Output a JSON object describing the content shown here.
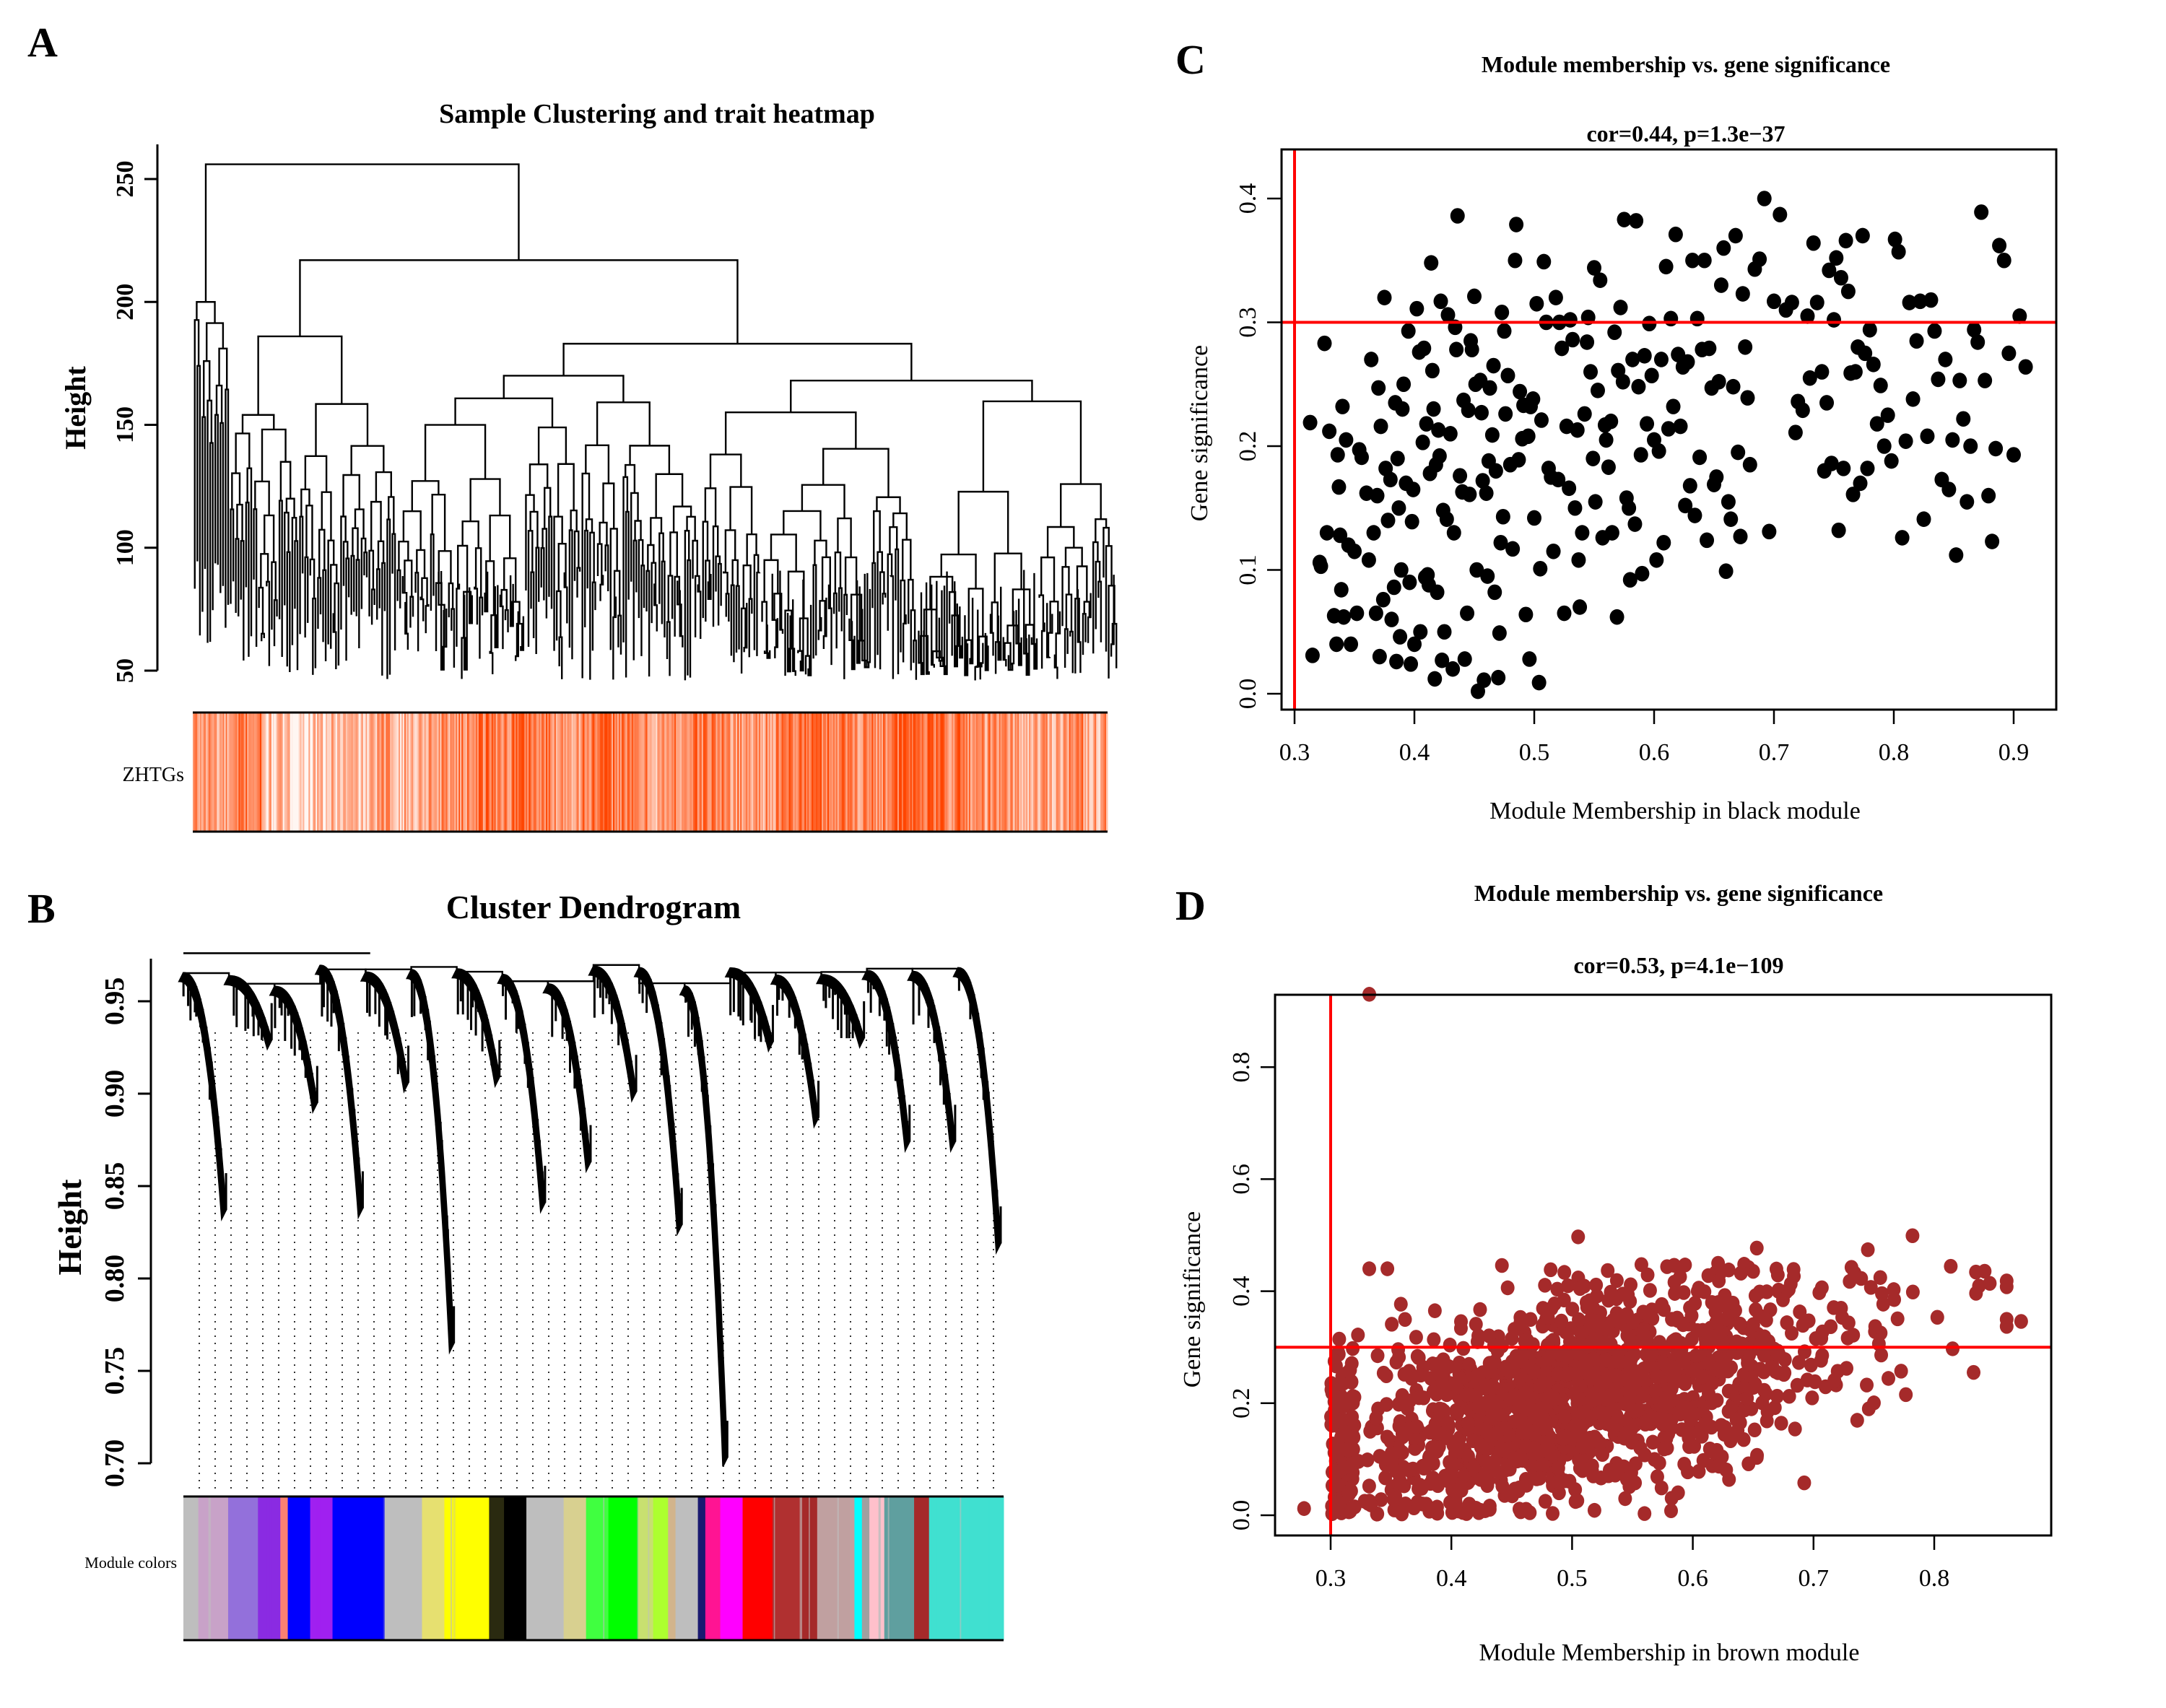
{
  "figure": {
    "panels": {
      "A": {
        "letter": "A"
      },
      "B": {
        "letter": "B"
      },
      "C": {
        "letter": "C"
      },
      "D": {
        "letter": "D"
      }
    }
  },
  "chart_data": [
    {
      "id": "A",
      "type": "dendrogram_heatmap",
      "title": "Sample Clustering and trait heatmap",
      "ylabel": "Height",
      "xlabel": "",
      "ylim": [
        50,
        260
      ],
      "yticks": [
        50,
        100,
        150,
        200,
        250
      ],
      "yticks_labels": [
        "50",
        "100",
        "150",
        "200",
        "250"
      ],
      "top_merge_heights": [
        256,
        217,
        186,
        183,
        177,
        170,
        167,
        166,
        161,
        155
      ],
      "leaf_height_range": [
        46,
        200
      ],
      "trait_row_label": "ZHTGs",
      "trait_colors": {
        "low": "#ffffff",
        "high": "#ff4500"
      },
      "trait_intensity_profile": [
        0.55,
        0.45,
        0.7,
        0.3,
        0.2,
        0.25,
        0.35,
        0.3,
        0.5,
        0.4,
        0.55,
        0.6,
        0.75,
        0.7,
        0.8,
        0.65,
        0.6,
        0.7,
        0.75,
        0.6,
        0.5,
        0.65,
        0.7,
        0.6,
        0.55,
        0.6,
        0.75,
        0.8,
        0.7,
        0.65,
        0.75,
        0.85,
        0.8,
        0.7,
        0.6,
        0.55,
        0.45,
        0.5,
        0.6,
        0.5
      ]
    },
    {
      "id": "B",
      "type": "dendrogram_colorbar",
      "title": "Cluster Dendrogram",
      "ylabel": "Height",
      "xlabel": "",
      "ylim": [
        0.695,
        0.978
      ],
      "yticks": [
        0.7,
        0.75,
        0.8,
        0.85,
        0.9,
        0.95
      ],
      "yticks_labels": [
        "0.70",
        "0.75",
        "0.80",
        "0.85",
        "0.90",
        "0.95"
      ],
      "branch_min_heights": [
        0.837,
        0.929,
        0.895,
        0.838,
        0.906,
        0.765,
        0.909,
        0.841,
        0.863,
        0.901,
        0.829,
        0.703,
        0.928,
        0.887,
        0.93,
        0.874,
        0.874,
        0.819
      ],
      "colorbar_label": "Module colors",
      "module_segments": [
        {
          "color": "#bebebe",
          "w": 2
        },
        {
          "color": "#c8a2c8",
          "w": 4
        },
        {
          "color": "#9370db",
          "w": 4
        },
        {
          "color": "#8a2be2",
          "w": 3
        },
        {
          "color": "#fa8072",
          "w": 1
        },
        {
          "color": "#0000ff",
          "w": 3
        },
        {
          "color": "#a020f0",
          "w": 3
        },
        {
          "color": "#0000ff",
          "w": 7
        },
        {
          "color": "#bebebe",
          "w": 5
        },
        {
          "color": "#e6e070",
          "w": 3
        },
        {
          "color": "#ffff00",
          "w": 6
        },
        {
          "color": "#2a2a10",
          "w": 2
        },
        {
          "color": "#000000",
          "w": 3
        },
        {
          "color": "#bebebe",
          "w": 5
        },
        {
          "color": "#d8d090",
          "w": 3
        },
        {
          "color": "#40ff40",
          "w": 3
        },
        {
          "color": "#00ff00",
          "w": 4
        },
        {
          "color": "#c8e070",
          "w": 2
        },
        {
          "color": "#adff2f",
          "w": 2
        },
        {
          "color": "#d2b48c",
          "w": 1
        },
        {
          "color": "#bebebe",
          "w": 3
        },
        {
          "color": "#191970",
          "w": 1
        },
        {
          "color": "#ff1493",
          "w": 2
        },
        {
          "color": "#ff00ff",
          "w": 3
        },
        {
          "color": "#ff0000",
          "w": 4
        },
        {
          "color": "#b03030",
          "w": 4
        },
        {
          "color": "#a52a2a",
          "w": 2
        },
        {
          "color": "#c0a0a0",
          "w": 5
        },
        {
          "color": "#00ffff",
          "w": 1
        },
        {
          "color": "#a0a0a0",
          "w": 1
        },
        {
          "color": "#ffc0cb",
          "w": 2
        },
        {
          "color": "#5f9f9f",
          "w": 4
        },
        {
          "color": "#a52a2a",
          "w": 2
        },
        {
          "color": "#40e0d0",
          "w": 10
        }
      ]
    },
    {
      "id": "C",
      "type": "scatter",
      "title": "Module membership vs. gene significance",
      "subtitle": "cor=0.44, p=1.3e−37",
      "xlabel": "Module Membership in black module",
      "ylabel": "Gene significance",
      "xlim": [
        0.3,
        0.91
      ],
      "ylim": [
        0.0,
        0.42
      ],
      "xticks": [
        0.3,
        0.4,
        0.5,
        0.6,
        0.7,
        0.8,
        0.9
      ],
      "xticks_labels": [
        "0.3",
        "0.4",
        "0.5",
        "0.6",
        "0.7",
        "0.8",
        "0.9"
      ],
      "yticks": [
        0.0,
        0.1,
        0.2,
        0.3,
        0.4
      ],
      "yticks_labels": [
        "0.0",
        "0.1",
        "0.2",
        "0.3",
        "0.4"
      ],
      "point_color": "#000000",
      "reference_lines": {
        "vertical_x": 0.3,
        "horizontal_y": 0.3,
        "color": "#ff0000"
      },
      "points_x": [
        0.313,
        0.315,
        0.321,
        0.322,
        0.325,
        0.327,
        0.329,
        0.333,
        0.335,
        0.336,
        0.337,
        0.338,
        0.339,
        0.34,
        0.341,
        0.343,
        0.345,
        0.347,
        0.35,
        0.352,
        0.354,
        0.356,
        0.36,
        0.362,
        0.364,
        0.366,
        0.368,
        0.369,
        0.37,
        0.371,
        0.372,
        0.374,
        0.375,
        0.376,
        0.378,
        0.38,
        0.381,
        0.383,
        0.384,
        0.385,
        0.386,
        0.387,
        0.388,
        0.389,
        0.39,
        0.391,
        0.393,
        0.395,
        0.396,
        0.397,
        0.398,
        0.399,
        0.4,
        0.402,
        0.404,
        0.405,
        0.407,
        0.408,
        0.409,
        0.41,
        0.411,
        0.412,
        0.413,
        0.414,
        0.415,
        0.416,
        0.417,
        0.418,
        0.419,
        0.42,
        0.421,
        0.422,
        0.423,
        0.424,
        0.425,
        0.427,
        0.428,
        0.43,
        0.432,
        0.433,
        0.434,
        0.435,
        0.436,
        0.438,
        0.44,
        0.441,
        0.442,
        0.444,
        0.445,
        0.446,
        0.447,
        0.448,
        0.45,
        0.451,
        0.452,
        0.453,
        0.455,
        0.456,
        0.457,
        0.458,
        0.46,
        0.461,
        0.462,
        0.463,
        0.465,
        0.466,
        0.467,
        0.468,
        0.47,
        0.471,
        0.472,
        0.473,
        0.474,
        0.475,
        0.476,
        0.478,
        0.48,
        0.482,
        0.484,
        0.485,
        0.487,
        0.488,
        0.49,
        0.491,
        0.493,
        0.495,
        0.496,
        0.497,
        0.499,
        0.5,
        0.502,
        0.504,
        0.505,
        0.506,
        0.508,
        0.51,
        0.512,
        0.514,
        0.516,
        0.518,
        0.52,
        0.521,
        0.523,
        0.525,
        0.527,
        0.529,
        0.53,
        0.532,
        0.534,
        0.536,
        0.537,
        0.538,
        0.54,
        0.542,
        0.544,
        0.545,
        0.547,
        0.549,
        0.55,
        0.551,
        0.553,
        0.555,
        0.557,
        0.559,
        0.56,
        0.562,
        0.564,
        0.565,
        0.567,
        0.569,
        0.57,
        0.572,
        0.574,
        0.575,
        0.577,
        0.579,
        0.58,
        0.582,
        0.584,
        0.585,
        0.587,
        0.589,
        0.59,
        0.592,
        0.594,
        0.596,
        0.598,
        0.6,
        0.602,
        0.604,
        0.606,
        0.608,
        0.61,
        0.612,
        0.614,
        0.616,
        0.618,
        0.62,
        0.622,
        0.624,
        0.626,
        0.628,
        0.63,
        0.632,
        0.634,
        0.636,
        0.638,
        0.64,
        0.642,
        0.644,
        0.646,
        0.648,
        0.65,
        0.652,
        0.654,
        0.656,
        0.658,
        0.66,
        0.662,
        0.664,
        0.666,
        0.668,
        0.67,
        0.672,
        0.674,
        0.676,
        0.678,
        0.68,
        0.684,
        0.688,
        0.692,
        0.696,
        0.7,
        0.705,
        0.71,
        0.715,
        0.718,
        0.72,
        0.724,
        0.728,
        0.73,
        0.733,
        0.736,
        0.74,
        0.742,
        0.744,
        0.746,
        0.748,
        0.75,
        0.752,
        0.754,
        0.756,
        0.758,
        0.76,
        0.762,
        0.764,
        0.766,
        0.768,
        0.77,
        0.772,
        0.774,
        0.776,
        0.778,
        0.78,
        0.783,
        0.786,
        0.789,
        0.792,
        0.795,
        0.798,
        0.801,
        0.804,
        0.807,
        0.81,
        0.813,
        0.816,
        0.819,
        0.822,
        0.825,
        0.828,
        0.831,
        0.834,
        0.837,
        0.84,
        0.843,
        0.846,
        0.849,
        0.852,
        0.855,
        0.858,
        0.861,
        0.864,
        0.867,
        0.87,
        0.873,
        0.876,
        0.879,
        0.882,
        0.885,
        0.888,
        0.892,
        0.896,
        0.9,
        0.905,
        0.91
      ],
      "points_y": [
        0.219,
        0.031,
        0.106,
        0.103,
        0.283,
        0.13,
        0.212,
        0.063,
        0.04,
        0.193,
        0.167,
        0.128,
        0.084,
        0.232,
        0.062,
        0.205,
        0.12,
        0.04,
        0.115,
        0.065,
        0.197,
        0.191,
        0.162,
        0.108,
        0.27,
        0.13,
        0.065,
        0.16,
        0.247,
        0.03,
        0.216,
        0.076,
        0.32,
        0.182,
        0.14,
        0.173,
        0.06,
        0.086,
        0.235,
        0.026,
        0.19,
        0.15,
        0.046,
        0.1,
        0.23,
        0.25,
        0.17,
        0.293,
        0.09,
        0.024,
        0.139,
        0.165,
        0.04,
        0.311,
        0.276,
        0.05,
        0.203,
        0.279,
        0.094,
        0.218,
        0.096,
        0.088,
        0.178,
        0.348,
        0.261,
        0.23,
        0.012,
        0.185,
        0.082,
        0.213,
        0.192,
        0.317,
        0.027,
        0.148,
        0.05,
        0.141,
        0.306,
        0.21,
        0.02,
        0.13,
        0.296,
        0.278,
        0.386,
        0.176,
        0.163,
        0.237,
        0.028,
        0.065,
        0.229,
        0.161,
        0.285,
        0.278,
        0.321,
        0.25,
        0.1,
        0.002,
        0.253,
        0.227,
        0.172,
        0.011,
        0.162,
        0.095,
        0.188,
        0.247,
        0.209,
        0.265,
        0.082,
        0.18,
        0.013,
        0.049,
        0.122,
        0.308,
        0.143,
        0.293,
        0.226,
        0.257,
        0.185,
        0.117,
        0.35,
        0.379,
        0.189,
        0.244,
        0.206,
        0.233,
        0.064,
        0.208,
        0.028,
        0.232,
        0.238,
        0.142,
        0.315,
        0.009,
        0.101,
        0.221,
        0.349,
        0.3,
        0.182,
        0.175,
        0.115,
        0.32,
        0.173,
        0.3,
        0.279,
        0.065,
        0.216,
        0.166,
        0.302,
        0.286,
        0.15,
        0.213,
        0.108,
        0.07,
        0.13,
        0.226,
        0.284,
        0.304,
        0.26,
        0.19,
        0.344,
        0.155,
        0.245,
        0.334,
        0.126,
        0.217,
        0.205,
        0.183,
        0.22,
        0.13,
        0.292,
        0.062,
        0.261,
        0.312,
        0.252,
        0.383,
        0.158,
        0.15,
        0.092,
        0.27,
        0.137,
        0.382,
        0.248,
        0.193,
        0.097,
        0.273,
        0.218,
        0.299,
        0.257,
        0.205,
        0.108,
        0.196,
        0.27,
        0.122,
        0.345,
        0.214,
        0.303,
        0.232,
        0.371,
        0.274,
        0.216,
        0.264,
        0.152,
        0.268,
        0.168,
        0.35,
        0.144,
        0.303,
        0.191,
        0.278,
        0.35,
        0.124,
        0.279,
        0.247,
        0.169,
        0.175,
        0.252,
        0.33,
        0.36,
        0.099,
        0.155,
        0.141,
        0.248,
        0.37,
        0.195,
        0.127,
        0.323,
        0.28,
        0.239,
        0.185,
        0.343,
        0.351,
        0.4,
        0.131,
        0.317,
        0.387,
        0.31,
        0.316,
        0.211,
        0.236,
        0.229,
        0.305,
        0.255,
        0.364,
        0.316,
        0.26,
        0.18,
        0.235,
        0.342,
        0.186,
        0.302,
        0.352,
        0.132,
        0.336,
        0.182,
        0.366,
        0.325,
        0.259,
        0.161,
        0.26,
        0.28,
        0.17,
        0.37,
        0.275,
        0.182,
        0.294,
        0.266,
        0.218,
        0.249,
        0.2,
        0.225,
        0.188,
        0.367,
        0.357,
        0.126,
        0.204,
        0.316,
        0.238,
        0.285,
        0.317,
        0.141,
        0.208,
        0.318,
        0.293,
        0.254,
        0.173,
        0.27,
        0.165,
        0.205,
        0.112,
        0.253,
        0.222,
        0.155,
        0.2,
        0.294,
        0.284,
        0.389,
        0.253,
        0.16,
        0.123,
        0.198,
        0.362,
        0.35,
        0.275,
        0.193,
        0.305,
        0.264,
        0.349,
        0.278,
        0.205,
        0.2,
        0.302,
        0.201,
        0.183,
        0.285,
        0.235,
        0.38,
        0.263,
        0.356,
        0.257,
        0.306,
        0.351,
        0.372,
        0.244,
        0.33,
        0.336,
        0.325,
        0.288,
        0.262,
        0.36,
        0.3,
        0.228,
        0.405,
        0.322,
        0.337,
        0.313
      ]
    },
    {
      "id": "D",
      "type": "scatter",
      "title": "Module membership vs. gene significance",
      "subtitle": "cor=0.53, p=4.1e−109",
      "xlabel": "Module Membership in brown module",
      "ylabel": "Gene significance",
      "xlim": [
        0.275,
        0.875
      ],
      "ylim": [
        0.0,
        0.93
      ],
      "xticks": [
        0.3,
        0.4,
        0.5,
        0.6,
        0.7,
        0.8
      ],
      "xticks_labels": [
        "0.3",
        "0.4",
        "0.5",
        "0.6",
        "0.7",
        "0.8"
      ],
      "yticks": [
        0.0,
        0.2,
        0.4,
        0.6,
        0.8
      ],
      "yticks_labels": [
        "0.0",
        "0.2",
        "0.4",
        "0.6",
        "0.8"
      ],
      "point_color": "#a52a2a",
      "reference_lines": {
        "vertical_x": 0.3,
        "horizontal_y": 0.3,
        "color": "#ff0000"
      },
      "notable_points": [
        {
          "x": 0.332,
          "y": 0.93
        },
        {
          "x": 0.332,
          "y": 0.44
        },
        {
          "x": 0.347,
          "y": 0.44
        },
        {
          "x": 0.505,
          "y": 0.497
        },
        {
          "x": 0.782,
          "y": 0.499
        },
        {
          "x": 0.653,
          "y": 0.477
        },
        {
          "x": 0.745,
          "y": 0.474
        },
        {
          "x": 0.846,
          "y": 0.414
        },
        {
          "x": 0.872,
          "y": 0.346
        },
        {
          "x": 0.278,
          "y": 0.012
        },
        {
          "x": 0.63,
          "y": 0.064
        },
        {
          "x": 0.582,
          "y": 0.008
        },
        {
          "x": 0.56,
          "y": 0.003
        }
      ],
      "cloud": {
        "n_points": 1500,
        "trend": {
          "intercept": -0.04,
          "slope": 0.5
        },
        "y_spread": 0.09,
        "x_distribution": "right-skewed, peak near 0.45, range 0.30-0.86"
      }
    }
  ]
}
